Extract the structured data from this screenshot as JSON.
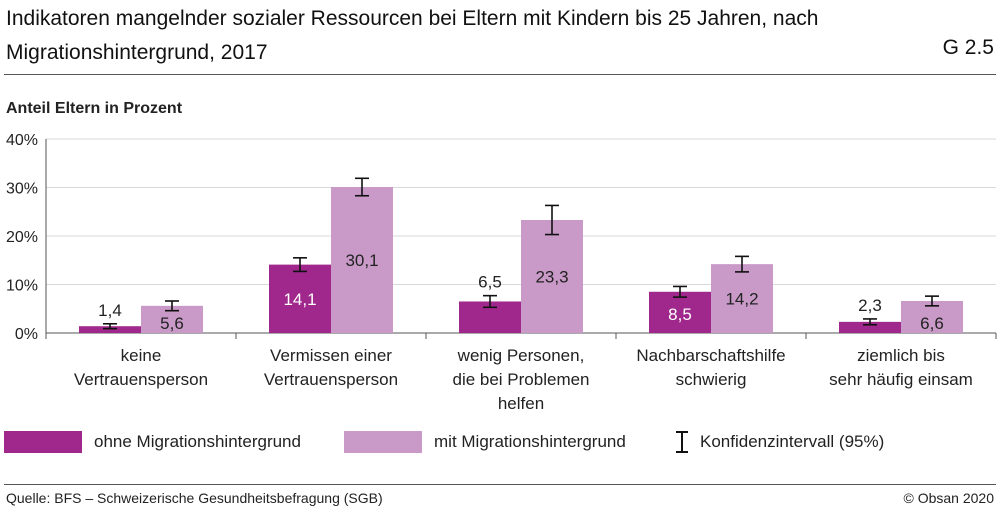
{
  "header": {
    "title": "Indikatoren mangelnder sozialer Ressourcen bei Eltern mit Kindern bis 25 Jahren, nach Migrationshintergrund, 2017",
    "chart_id": "G 2.5",
    "y_axis_caption": "Anteil Eltern in Prozent"
  },
  "legend": {
    "series1": "ohne Migrationshintergrund",
    "series2": "mit Migrationshintergrund",
    "ci": "Konfidenzintervall (95%)"
  },
  "footer": {
    "source": "Quelle: BFS – Schweizerische Gesundheitsbefragung (SGB)",
    "copyright": "© Obsan 2020"
  },
  "colors": {
    "series1": "#a0288c",
    "series2": "#c99ac8",
    "grid": "#d9d9d9",
    "axis": "#555555"
  },
  "chart_data": {
    "type": "bar",
    "title": "Indikatoren mangelnder sozialer Ressourcen bei Eltern mit Kindern bis 25 Jahren, nach Migrationshintergrund, 2017",
    "ylabel": "Anteil Eltern in Prozent",
    "ylim": [
      0,
      40
    ],
    "yticks": [
      "0%",
      "10%",
      "20%",
      "30%",
      "40%"
    ],
    "ytick_values": [
      0,
      10,
      20,
      30,
      40
    ],
    "grid": true,
    "legend_position": "bottom",
    "categories": [
      [
        "keine",
        "Vertrauensperson"
      ],
      [
        "Vermissen einer",
        "Vertrauensperson"
      ],
      [
        "wenig Personen,",
        "die bei Problemen",
        "helfen"
      ],
      [
        "Nachbarschaftshilfe",
        "schwierig"
      ],
      [
        "ziemlich bis",
        "sehr häufig einsam"
      ]
    ],
    "series": [
      {
        "name": "ohne Migrationshintergrund",
        "values": [
          1.4,
          14.1,
          6.5,
          8.5,
          2.3
        ],
        "labels": [
          "1,4",
          "14,1",
          "6,5",
          "8,5",
          "2,3"
        ],
        "ci_low": [
          0.9,
          12.7,
          5.3,
          7.4,
          1.7
        ],
        "ci_high": [
          1.9,
          15.5,
          7.7,
          9.6,
          2.9
        ]
      },
      {
        "name": "mit Migrationshintergrund",
        "values": [
          5.6,
          30.1,
          23.3,
          14.2,
          6.6
        ],
        "labels": [
          "5,6",
          "30,1",
          "23,3",
          "14,2",
          "6,6"
        ],
        "ci_low": [
          4.6,
          28.3,
          20.3,
          12.6,
          5.6
        ],
        "ci_high": [
          6.6,
          31.9,
          26.3,
          15.8,
          7.6
        ]
      }
    ]
  }
}
